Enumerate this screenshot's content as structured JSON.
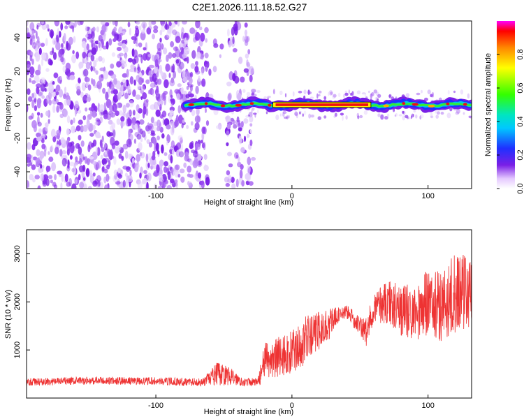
{
  "title": "C2E1.2026.111.18.52.G27",
  "chart_data": [
    {
      "type": "heatmap",
      "title": "C2E1.2026.111.18.52.G27",
      "xlabel": "Height of straight line (km)",
      "ylabel": "Frequency (Hz)",
      "xlim": [
        -195,
        132
      ],
      "ylim": [
        -50,
        50
      ],
      "xticks": [
        -100,
        0,
        100
      ],
      "yticks": [
        -40,
        -20,
        0,
        20,
        40
      ],
      "colorbar": {
        "label": "Normalized spectral amplitude",
        "range": [
          0,
          1
        ],
        "ticks": [
          0.0,
          0.2,
          0.4,
          0.6,
          0.8
        ]
      },
      "ridge_band": {
        "x_start": -78,
        "x_end": 132,
        "peak_x_start": -14,
        "peak_x_end": 58,
        "freq": 0
      },
      "noise_region_x": [
        -195,
        -28
      ]
    },
    {
      "type": "line",
      "xlabel": "Height of straight line (km)",
      "ylabel": "SNR (10 * v/v)",
      "xlim": [
        -195,
        132
      ],
      "ylim": [
        0,
        3500
      ],
      "xticks": [
        -100,
        0,
        100
      ],
      "yticks": [
        1000,
        2000,
        3000
      ],
      "series": [
        {
          "name": "SNR",
          "color": "#ee3333",
          "x": [
            -195,
            -150,
            -100,
            -65,
            -55,
            -45,
            -35,
            -25,
            -20,
            -10,
            0,
            10,
            20,
            30,
            35,
            40,
            50,
            55,
            60,
            70,
            80,
            90,
            100,
            110,
            120,
            125,
            132
          ],
          "mean": [
            330,
            360,
            350,
            330,
            500,
            450,
            330,
            330,
            750,
            850,
            950,
            1200,
            1400,
            1600,
            1750,
            1800,
            1500,
            1350,
            1900,
            2000,
            1850,
            1750,
            2000,
            1900,
            2200,
            2300,
            2100
          ],
          "spread": [
            80,
            80,
            80,
            90,
            250,
            180,
            80,
            90,
            400,
            450,
            450,
            500,
            400,
            300,
            150,
            150,
            200,
            350,
            300,
            500,
            550,
            600,
            700,
            750,
            850,
            900,
            700
          ]
        }
      ]
    }
  ]
}
